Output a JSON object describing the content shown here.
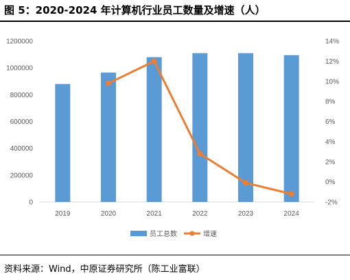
{
  "title": "图 5：2020-2024 年计算机行业员工数量及增速（人）",
  "source": "资料来源：Wind，中原证券研究所（陈工业富联）",
  "chart_data": {
    "type": "bar",
    "categories": [
      "2019",
      "2020",
      "2021",
      "2022",
      "2023",
      "2024"
    ],
    "series": [
      {
        "name": "员工总数",
        "type": "bar",
        "axis": "left",
        "color": "#5B9BD5",
        "values": [
          880000,
          965000,
          1080000,
          1110000,
          1110000,
          1095000
        ]
      },
      {
        "name": "增速",
        "type": "line",
        "axis": "right",
        "color": "#ED7D31",
        "values": [
          null,
          9.8,
          12.0,
          2.8,
          -0.1,
          -1.2
        ]
      }
    ],
    "y_left": {
      "min": 0,
      "max": 1200000,
      "ticks": [
        "0",
        "200000",
        "400000",
        "600000",
        "800000",
        "1000000",
        "1200000"
      ]
    },
    "y_right": {
      "min": -2,
      "max": 14,
      "ticks": [
        "-2%",
        "0%",
        "2%",
        "4%",
        "6%",
        "8%",
        "10%",
        "12%",
        "14%"
      ]
    },
    "legend_position": "bottom",
    "grid": false
  }
}
